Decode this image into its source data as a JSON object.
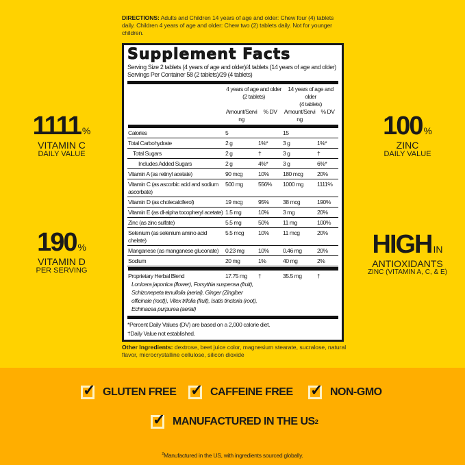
{
  "colors": {
    "background": "#FFD200",
    "band": "#FFAE00",
    "text": "#1a1a1a"
  },
  "directions": {
    "label": "DIRECTIONS:",
    "text": " Adults and Children 14 years of age and older: Chew four (4) tablets daily. Children 4 years of age and older: Chew two (2) tablets daily. Not for younger children."
  },
  "facts": {
    "title": "Supplement Facts",
    "serving_size": "Serving Size 2 tablets (4 years of age and older)/4 tablets (14 years of age and older)",
    "servings_per_container": "Servings Per Container 58 (2 tablets)/29 (4 tablets)",
    "col1_head": "4 years of age and older",
    "col1_sub": "(2 tablets)",
    "col2_head": "14 years of age and older",
    "col2_sub": "(4 tablets)",
    "amount_label": "Amount/Serving",
    "dv_label": "% DV",
    "rows": [
      {
        "name": "Calories",
        "a1": "5",
        "d1": "",
        "a2": "15",
        "d2": ""
      },
      {
        "name": "Total Carbohydrate",
        "a1": "2 g",
        "d1": "1%*",
        "a2": "3 g",
        "d2": "1%*"
      },
      {
        "name": "Total Sugars",
        "a1": "2 g",
        "d1": "†",
        "a2": "3 g",
        "d2": "†"
      },
      {
        "name": "Includes Added Sugars",
        "a1": "2 g",
        "d1": "4%*",
        "a2": "3 g",
        "d2": "6%*"
      },
      {
        "name": "Vitamin A (as retinyl acetate)",
        "a1": "90 mcg",
        "d1": "10%",
        "a2": "180 mcg",
        "d2": "20%"
      },
      {
        "name": "Vitamin C (as ascorbic acid and sodium ascorbate)",
        "a1": "500 mg",
        "d1": "556%",
        "a2": "1000 mg",
        "d2": "1111%"
      },
      {
        "name": "Vitamin D (as cholecalciferol)",
        "a1": "19 mcg",
        "d1": "95%",
        "a2": "38 mcg",
        "d2": "190%"
      },
      {
        "name": "Vitamin E (as dl-alpha tocopheryl acetate)",
        "a1": "1.5 mg",
        "d1": "10%",
        "a2": "3 mg",
        "d2": "20%"
      },
      {
        "name": "Zinc (as zinc sulfate)",
        "a1": "5.5 mg",
        "d1": "50%",
        "a2": "11 mg",
        "d2": "100%"
      },
      {
        "name": "Selenium (as selenium amino acid chelate)",
        "a1": "5.5 mcg",
        "d1": "10%",
        "a2": "11 mcg",
        "d2": "20%"
      },
      {
        "name": "Manganese (as manganese gluconate)",
        "a1": "0.23 mg",
        "d1": "10%",
        "a2": "0.46 mg",
        "d2": "20%"
      },
      {
        "name": "Sodium",
        "a1": "20 mg",
        "d1": "1%",
        "a2": "40 mg",
        "d2": "2%"
      }
    ],
    "blend": {
      "name": "Proprietary Herbal Blend",
      "a1": "17.75 mg",
      "d1": "†",
      "a2": "35.5 mg",
      "d2": "†",
      "desc": "Lonicera japonica (flower), Forsythia suspensa (fruit), Schizonepeta tenuifolia (aerial), Ginger (Zingiber officinale (root)), Vitex trifolia (fruit), Isatis tinctoria (root), Echinacea purpurea (aerial)"
    },
    "footnote1": "*Percent Daily Values (DV) are based on a 2,000 calorie diet.",
    "footnote2": "†Daily Value not established."
  },
  "other": {
    "label": "Other Ingredients:",
    "text": " dextrose, beet juice color, magnesium stearate, sucralose, natural flavor, microcrystalline cellulose, silicon dioxide"
  },
  "stats": [
    {
      "value": "1111",
      "unit": "%",
      "line1": "VITAMIN C",
      "line2": "DAILY VALUE"
    },
    {
      "value": "190",
      "unit": "%",
      "line1": "VITAMIN D",
      "line2": "PER SERVING"
    },
    {
      "value": "100",
      "unit": "%",
      "line1": "ZINC",
      "line2": "DAILY VALUE"
    },
    {
      "value": "HIGH",
      "unit": "IN",
      "line1": "ANTIOXIDANTS",
      "line2": "ZINC (VITAMIN A, C, & E)"
    }
  ],
  "features": [
    "GLUTEN FREE",
    "CAFFEINE FREE",
    "NON-GMO",
    "MANUFACTURED IN THE US"
  ],
  "feature_sup": "2",
  "footnote": {
    "sup": "2",
    "text": "Manufactured in the US, with ingredients sourced globally."
  }
}
